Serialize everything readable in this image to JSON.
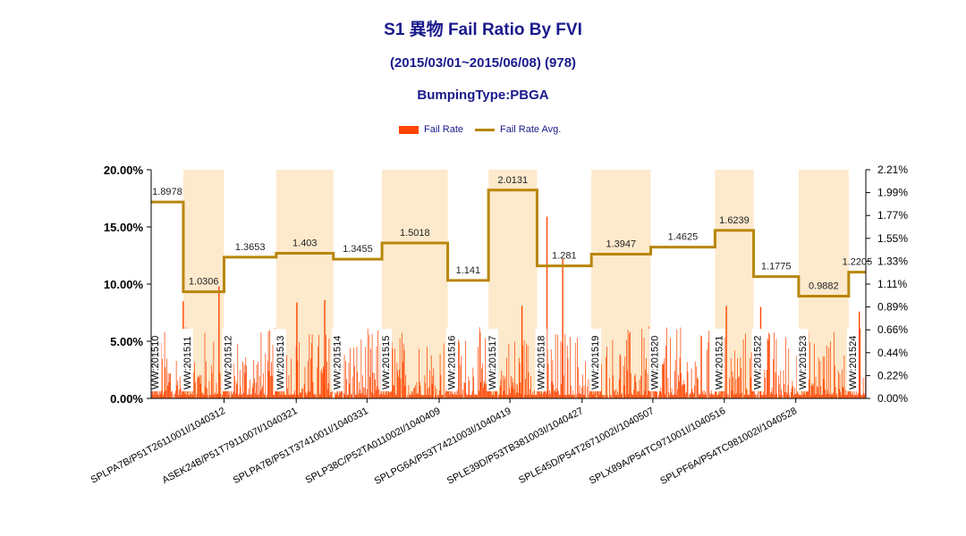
{
  "chart_data": {
    "type": "bar",
    "title": "S1 異物 Fail Ratio By FVI",
    "subtitle": "(2015/03/01~2015/06/08) (978)",
    "subtitle2": "BumpingType:PBGA",
    "legend": [
      "Fail Rate",
      "Fail Rate Avg."
    ],
    "legend_placement": "top-center",
    "colors": {
      "bar": "#ff4500",
      "line": "#b8860b",
      "band": "#fde9cc",
      "title": "#1a1a8c"
    },
    "y_left": {
      "ticks": [
        "0.00%",
        "5.00%",
        "10.00%",
        "15.00%",
        "20.00%"
      ],
      "range": [
        0,
        20
      ]
    },
    "y_right": {
      "ticks": [
        "0.00%",
        "0.22%",
        "0.44%",
        "0.66%",
        "0.89%",
        "1.11%",
        "1.33%",
        "1.55%",
        "1.77%",
        "1.99%",
        "2.21%"
      ],
      "range": [
        0,
        2.21
      ]
    },
    "x_tick_labels": [
      "SPLPA7B/P51T2611001I/1040312",
      "ASEK24B/P51T7911007I/1040321",
      "SPLPA7B/P51T3741001I/1040331",
      "SPLP38C/P52TA011002I/1040409",
      "SPLPG6A/P53T7421003I/1040419",
      "SPLE39D/P53TB381003I/1040427",
      "SPLE45D/P54T2671002I/1040507",
      "SPLX89A/P54TC971001I/1040516",
      "SPLPF6A/P54TC981002I/1040528"
    ],
    "weeks": [
      {
        "label": "WW:201510",
        "start": 0.0,
        "end": 0.045,
        "band": false
      },
      {
        "label": "WW:201511",
        "start": 0.045,
        "end": 0.102,
        "band": true
      },
      {
        "label": "WW:201512",
        "start": 0.102,
        "end": 0.175,
        "band": false
      },
      {
        "label": "WW:201513",
        "start": 0.175,
        "end": 0.255,
        "band": true
      },
      {
        "label": "WW:201514",
        "start": 0.255,
        "end": 0.323,
        "band": false
      },
      {
        "label": "WW:201515",
        "start": 0.323,
        "end": 0.415,
        "band": true
      },
      {
        "label": "WW:201516",
        "start": 0.415,
        "end": 0.472,
        "band": false
      },
      {
        "label": "WW:201517",
        "start": 0.472,
        "end": 0.54,
        "band": true
      },
      {
        "label": "WW:201518",
        "start": 0.54,
        "end": 0.616,
        "band": false
      },
      {
        "label": "WW:201519",
        "start": 0.616,
        "end": 0.699,
        "band": true
      },
      {
        "label": "WW:201520",
        "start": 0.699,
        "end": 0.789,
        "band": false
      },
      {
        "label": "WW:201521",
        "start": 0.789,
        "end": 0.843,
        "band": true
      },
      {
        "label": "WW:201522",
        "start": 0.843,
        "end": 0.906,
        "band": false
      },
      {
        "label": "WW:201523",
        "start": 0.906,
        "end": 0.976,
        "band": true
      },
      {
        "label": "WW:201524",
        "start": 0.976,
        "end": 1.0,
        "band": false
      }
    ],
    "avg_line": [
      {
        "label": "1.8978",
        "value": 1.8978
      },
      {
        "label": "1.0306",
        "value": 1.0306
      },
      {
        "label": "1.3653",
        "value": 1.3653
      },
      {
        "label": "1.403",
        "value": 1.403
      },
      {
        "label": "1.3455",
        "value": 1.3455
      },
      {
        "label": "1.5018",
        "value": 1.5018
      },
      {
        "label": "1.141",
        "value": 1.141
      },
      {
        "label": "2.0131",
        "value": 2.0131
      },
      {
        "label": "1.281",
        "value": 1.281
      },
      {
        "label": "1.3947",
        "value": 1.3947
      },
      {
        "label": "1.4625",
        "value": 1.4625
      },
      {
        "label": "1.6239",
        "value": 1.6239
      },
      {
        "label": "1.1775",
        "value": 1.1775
      },
      {
        "label": "0.9882",
        "value": 0.9882
      },
      {
        "label": "1.2205",
        "value": 1.2205
      }
    ],
    "bar_count": 978,
    "notable_bars": [
      {
        "position": 0.044,
        "value": 8.5
      },
      {
        "position": 0.094,
        "value": 9.8
      },
      {
        "position": 0.203,
        "value": 8.4
      },
      {
        "position": 0.242,
        "value": 8.6
      },
      {
        "position": 0.518,
        "value": 8.1
      },
      {
        "position": 0.553,
        "value": 15.9
      },
      {
        "position": 0.575,
        "value": 12.2
      },
      {
        "position": 0.804,
        "value": 8.1
      },
      {
        "position": 0.852,
        "value": 8.0
      },
      {
        "position": 0.99,
        "value": 7.6
      }
    ]
  }
}
